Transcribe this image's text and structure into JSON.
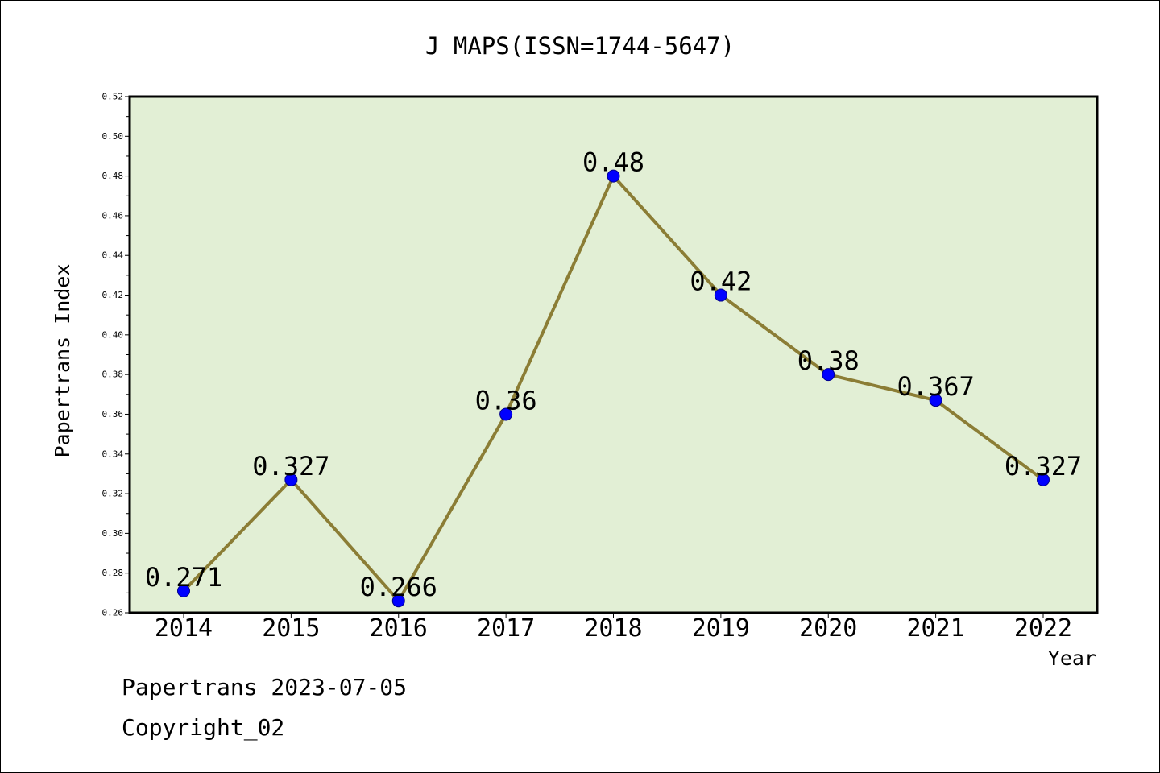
{
  "chart_data": {
    "type": "line",
    "title": "J MAPS(ISSN=1744-5647)",
    "xlabel": "Year",
    "ylabel": "Papertrans Index",
    "categories": [
      "2014",
      "2015",
      "2016",
      "2017",
      "2018",
      "2019",
      "2020",
      "2021",
      "2022"
    ],
    "values": [
      0.271,
      0.327,
      0.266,
      0.36,
      0.48,
      0.42,
      0.38,
      0.367,
      0.327
    ],
    "data_labels": [
      "0.271",
      "0.327",
      "0.266",
      "0.36",
      "0.48",
      "0.42",
      "0.38",
      "0.367",
      "0.327"
    ],
    "ylim": [
      0.26,
      0.52
    ],
    "yticks": [
      "0.26",
      "0.28",
      "0.30",
      "0.32",
      "0.34",
      "0.36",
      "0.38",
      "0.40",
      "0.42",
      "0.44",
      "0.46",
      "0.48",
      "0.50",
      "0.52"
    ],
    "grid": false,
    "legend": "none",
    "colors": {
      "plot_background": "#e2efd5",
      "line": "#8b7d35",
      "marker_fill": "#0000ff",
      "marker_edge": "#00008b"
    }
  },
  "footer": {
    "source": "Papertrans 2023-07-05",
    "copyright": "Copyright_02"
  }
}
